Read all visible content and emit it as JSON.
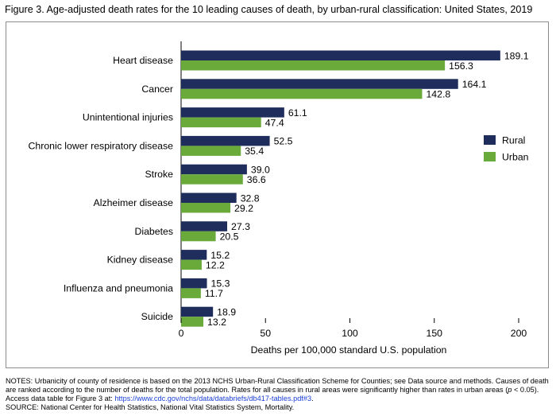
{
  "title": "Figure 3. Age-adjusted death rates for the 10 leading causes of death, by urban-rural classification: United States, 2019",
  "chart_data": {
    "type": "bar",
    "orientation": "horizontal",
    "categories": [
      "Heart disease",
      "Cancer",
      "Unintentional injuries",
      "Chronic lower respiratory disease",
      "Stroke",
      "Alzheimer disease",
      "Diabetes",
      "Kidney disease",
      "Influenza and pneumonia",
      "Suicide"
    ],
    "series": [
      {
        "name": "Rural",
        "color": "#1f2d5c",
        "values": [
          189.1,
          164.1,
          61.1,
          52.5,
          39.0,
          32.8,
          27.3,
          15.2,
          15.3,
          18.9
        ]
      },
      {
        "name": "Urban",
        "color": "#6aaa3a",
        "values": [
          156.3,
          142.8,
          47.4,
          35.4,
          36.6,
          29.2,
          20.5,
          12.2,
          11.7,
          13.2
        ]
      }
    ],
    "xlabel": "Deaths per 100,000 standard U.S. population",
    "xlim": [
      0,
      200
    ],
    "xticks": [
      0,
      50,
      100,
      150,
      200
    ],
    "legend_position": "right"
  },
  "notes": {
    "notes_text": "NOTES: Urbanicity of county of residence is based on the 2013 NCHS Urban-Rural Classification Scheme for Counties; see Data source and methods. Causes of death are ranked according to the number of deaths for the total population. Rates for all causes in rural areas were significantly higher than rates in urban areas (",
    "p_symbol": "p",
    "notes_text_2": " < 0.05). Access data table for Figure 3 at: ",
    "link": "https://www.cdc.gov/nchs/data/databriefs/db417-tables.pdf#3",
    "notes_end": ".",
    "source": "SOURCE: National Center for Health Statistics, National Vital Statistics System, Mortality."
  }
}
